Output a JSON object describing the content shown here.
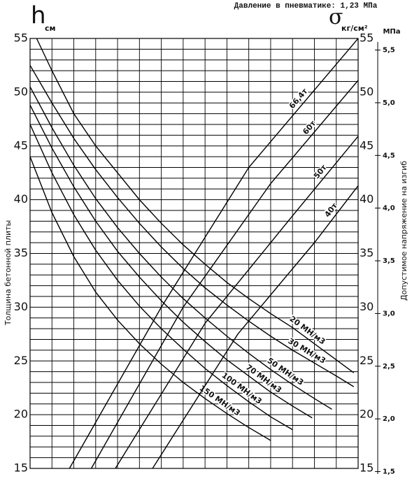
{
  "chart_data": {
    "type": "line",
    "title": "Давление в пневматике: 1,23 МПа",
    "y_symbol": "h",
    "y_unit": "см",
    "y2_symbol": "σ",
    "y2_unit": "кг/см²",
    "y3_unit": "МПа",
    "ylabel": "Толщина бетонной плиты",
    "y3label": "Допустимое напряжение на изгиб",
    "xlim": [
      0,
      15
    ],
    "xticks": [
      0,
      1,
      2,
      3,
      4,
      5,
      6,
      7,
      8,
      9,
      10,
      11,
      12,
      13,
      14,
      15
    ],
    "ylim": [
      15,
      55
    ],
    "yticks": [
      15,
      20,
      25,
      30,
      35,
      40,
      45,
      50,
      55
    ],
    "minor_yticks": [
      15,
      16,
      17,
      18,
      19,
      20,
      21,
      22,
      23,
      24,
      25,
      26,
      27,
      28,
      29,
      30,
      31,
      32,
      33,
      34,
      35,
      36,
      37,
      38,
      39,
      40,
      41,
      42,
      43,
      44,
      45,
      46,
      47,
      48,
      49,
      50,
      51,
      52,
      53,
      54,
      55
    ],
    "y2lim": [
      15,
      55
    ],
    "y2ticks": [
      15,
      20,
      25,
      30,
      35,
      40,
      45,
      50,
      55
    ],
    "y3lim": [
      1.53,
      5.61
    ],
    "y3ticks": [
      {
        "value": 1.5,
        "label": "1,5"
      },
      {
        "value": 2.0,
        "label": "2,0"
      },
      {
        "value": 2.5,
        "label": "2,5"
      },
      {
        "value": 3.0,
        "label": "3,0"
      },
      {
        "value": 3.5,
        "label": "3,5"
      },
      {
        "value": 4.0,
        "label": "4,0"
      },
      {
        "value": 4.5,
        "label": "4,5"
      },
      {
        "value": 5.0,
        "label": "5,0"
      },
      {
        "value": 5.5,
        "label": "5,5"
      }
    ],
    "grid": true,
    "series": [
      {
        "name": "20 МН/м3",
        "color": "#000000",
        "axis": "y",
        "x": [
          0.3,
          1,
          2,
          3,
          4,
          5,
          6,
          7,
          8,
          9,
          10,
          11,
          12,
          13,
          14,
          14.8
        ],
        "values": [
          55,
          52,
          48,
          45,
          42.5,
          40,
          37.8,
          35.8,
          34,
          32.3,
          30.8,
          29.4,
          28.1,
          26.6,
          25.1,
          23.9
        ]
      },
      {
        "name": "30 МН/м3",
        "color": "#000000",
        "axis": "y",
        "x": [
          0,
          1,
          2,
          3,
          4,
          5,
          6,
          7,
          8,
          9,
          10,
          11,
          12,
          13,
          14,
          14.8
        ],
        "values": [
          52.5,
          49,
          45.7,
          42.8,
          40.2,
          37.8,
          35.6,
          33.6,
          31.8,
          30.2,
          28.7,
          27.3,
          26,
          24.8,
          23.6,
          22.6
        ]
      },
      {
        "name": "50 МН/м3",
        "color": "#000000",
        "axis": "y",
        "x": [
          0,
          1,
          2,
          3,
          4,
          5,
          6,
          7,
          8,
          9,
          10,
          11,
          12,
          13,
          13.8
        ],
        "values": [
          50.5,
          46.7,
          43.2,
          40.1,
          37.4,
          35,
          32.8,
          30.8,
          29,
          27.3,
          25.7,
          24.2,
          22.8,
          21.5,
          20.5
        ]
      },
      {
        "name": "70 МН/м3",
        "color": "#000000",
        "axis": "y",
        "x": [
          0,
          1,
          2,
          3,
          4,
          5,
          6,
          7,
          8,
          9,
          10,
          11,
          12,
          12.9
        ],
        "values": [
          48.8,
          44.8,
          41.2,
          38,
          35.2,
          32.8,
          30.6,
          28.6,
          26.8,
          25.1,
          23.6,
          22.1,
          20.8,
          19.7
        ]
      },
      {
        "name": "100 МН/м3",
        "color": "#000000",
        "axis": "y",
        "x": [
          0,
          1,
          2,
          3,
          4,
          5,
          6,
          7,
          8,
          9,
          10,
          11,
          12
        ],
        "values": [
          47,
          42.5,
          38.6,
          35.3,
          32.5,
          30.1,
          28,
          26.1,
          24.3,
          22.7,
          21.2,
          19.8,
          18.6
        ]
      },
      {
        "name": "150 МН/м3",
        "color": "#000000",
        "axis": "y",
        "x": [
          0,
          1,
          2,
          3,
          4,
          5,
          6,
          7,
          8,
          9,
          10,
          11
        ],
        "values": [
          44,
          38.8,
          34.7,
          31.4,
          28.8,
          26.6,
          24.7,
          23,
          21.5,
          20.1,
          18.8,
          17.6
        ]
      },
      {
        "name": "66,4т",
        "color": "#000000",
        "axis": "y2",
        "x": [
          1.8,
          6,
          10,
          15
        ],
        "values": [
          15,
          30,
          43,
          55
        ]
      },
      {
        "name": "60т",
        "color": "#000000",
        "axis": "y2",
        "x": [
          2.8,
          7,
          11,
          15
        ],
        "values": [
          15,
          30,
          41.5,
          51.1
        ]
      },
      {
        "name": "50т",
        "color": "#000000",
        "axis": "y2",
        "x": [
          3.9,
          8,
          12,
          15
        ],
        "values": [
          15,
          28.5,
          38.5,
          45.9
        ]
      },
      {
        "name": "40т",
        "color": "#000000",
        "axis": "y2",
        "x": [
          5.6,
          9.5,
          13,
          15
        ],
        "values": [
          15,
          27.5,
          36,
          41.3
        ]
      }
    ]
  }
}
